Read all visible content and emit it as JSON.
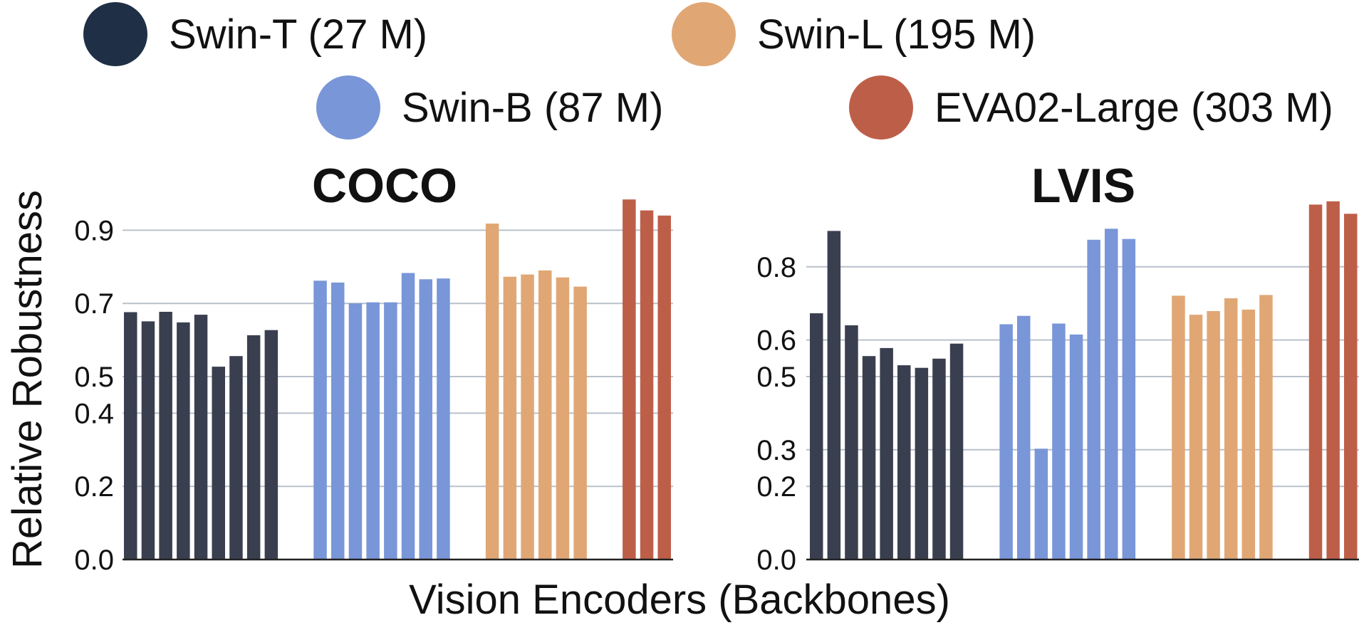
{
  "chart_data": {
    "type": "bar",
    "ylabel": "Relative Robustness",
    "xlabel": "Vision Encoders (Backbones)",
    "legend": {
      "placement": "top",
      "entries": [
        {
          "name": "Swin-T (27 M)",
          "color": "#1f2f45"
        },
        {
          "name": "Swin-B (87 M)",
          "color": "#7996d8"
        },
        {
          "name": "Swin-L (195 M)",
          "color": "#e0a775"
        },
        {
          "name": "EVA02-Large (303 M)",
          "color": "#bd5f48"
        }
      ]
    },
    "grid": true,
    "panels": [
      {
        "title": "COCO",
        "ylim": [
          0,
          1.0
        ],
        "yticks": [
          0.0,
          0.2,
          0.4,
          0.5,
          0.7,
          0.9
        ],
        "ytick_labels": [
          "0.0",
          "0.2",
          "0.4",
          "0.5",
          "0.7",
          "0.9"
        ],
        "series": [
          {
            "name": "Swin-T (27 M)",
            "color": "#3a3f50",
            "values": [
              0.676,
              0.651,
              0.677,
              0.648,
              0.669,
              0.527,
              0.556,
              0.613,
              0.627
            ]
          },
          {
            "name": "Swin-B (87 M)",
            "color": "#7996d8",
            "values": [
              0.762,
              0.757,
              0.7,
              0.703,
              0.703,
              0.783,
              0.766,
              0.768
            ]
          },
          {
            "name": "Swin-L (195 M)",
            "color": "#e0a775",
            "values": [
              0.918,
              0.773,
              0.779,
              0.79,
              0.771,
              0.746
            ]
          },
          {
            "name": "EVA02-Large (303 M)",
            "color": "#bd5f48",
            "values": [
              0.984,
              0.954,
              0.94
            ]
          }
        ]
      },
      {
        "title": "LVIS",
        "ylim": [
          0,
          1.0
        ],
        "yticks": [
          0.0,
          0.2,
          0.3,
          0.5,
          0.6,
          0.8
        ],
        "ytick_labels": [
          "0.0",
          "0.2",
          "0.3",
          "0.5",
          "0.6",
          "0.8"
        ],
        "series": [
          {
            "name": "Swin-T (27 M)",
            "color": "#3a3f50",
            "values": [
              0.673,
              0.898,
              0.64,
              0.556,
              0.578,
              0.531,
              0.524,
              0.549,
              0.59
            ]
          },
          {
            "name": "Swin-B (87 M)",
            "color": "#7996d8",
            "values": [
              0.643,
              0.666,
              0.303,
              0.645,
              0.615,
              0.874,
              0.904,
              0.876
            ]
          },
          {
            "name": "Swin-L (195 M)",
            "color": "#e0a775",
            "values": [
              0.721,
              0.669,
              0.679,
              0.714,
              0.683,
              0.723
            ]
          },
          {
            "name": "EVA02-Large (303 M)",
            "color": "#bd5f48",
            "values": [
              0.97,
              0.979,
              0.945
            ]
          }
        ]
      }
    ]
  }
}
